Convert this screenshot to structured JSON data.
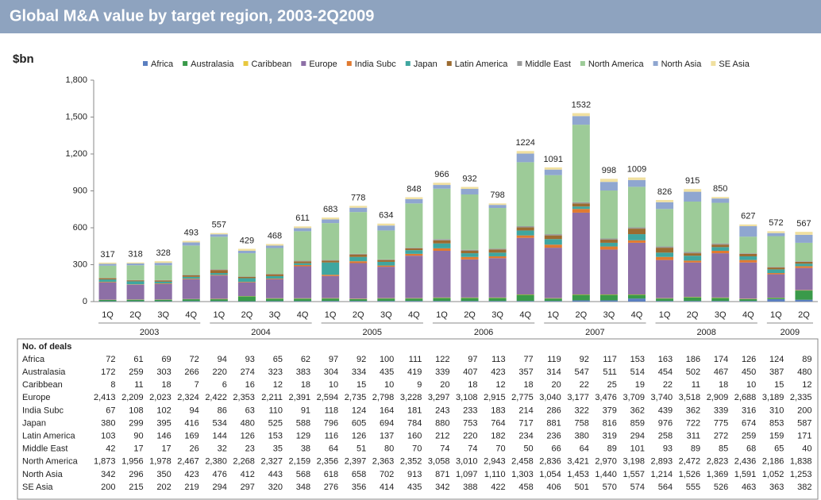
{
  "chart_data": {
    "type": "stacked_bar",
    "title": "Global M&A value by target region, 2003-2Q2009",
    "y_label": "$bn",
    "groups": [
      {
        "label": "2003",
        "categories": [
          "1Q",
          "2Q",
          "3Q",
          "4Q"
        ]
      },
      {
        "label": "2004",
        "categories": [
          "1Q",
          "2Q",
          "3Q",
          "4Q"
        ]
      },
      {
        "label": "2005",
        "categories": [
          "1Q",
          "2Q",
          "3Q",
          "4Q"
        ]
      },
      {
        "label": "2006",
        "categories": [
          "1Q",
          "2Q",
          "3Q",
          "4Q"
        ]
      },
      {
        "label": "2007",
        "categories": [
          "1Q",
          "2Q",
          "3Q",
          "4Q"
        ]
      },
      {
        "label": "2008",
        "categories": [
          "1Q",
          "2Q",
          "3Q",
          "4Q"
        ]
      },
      {
        "label": "2009",
        "categories": [
          "1Q",
          "2Q"
        ]
      }
    ],
    "totals": [
      317,
      318,
      328,
      493,
      557,
      429,
      468,
      611,
      683,
      778,
      634,
      848,
      966,
      932,
      798,
      1224,
      1091,
      1532,
      998,
      1009,
      826,
      915,
      850,
      627,
      572,
      567
    ],
    "ylim": [
      0,
      1800
    ],
    "yticks": [
      0,
      300,
      600,
      900,
      {
        "value": 1200,
        "label": "1,200"
      },
      {
        "value": 1500,
        "label": "1,500"
      },
      {
        "value": 1800,
        "label": "1,800"
      }
    ],
    "series": [
      {
        "name": "Africa",
        "color": "#5b7fc0",
        "values": [
          3,
          3,
          3,
          4,
          4,
          3,
          4,
          4,
          5,
          5,
          5,
          5,
          5,
          5,
          5,
          5,
          5,
          10,
          10,
          25,
          5,
          5,
          5,
          5,
          20,
          15
        ]
      },
      {
        "name": "Australasia",
        "color": "#3a9a4a",
        "values": [
          10,
          12,
          12,
          15,
          15,
          40,
          20,
          20,
          20,
          15,
          20,
          20,
          25,
          25,
          25,
          50,
          20,
          45,
          45,
          30,
          20,
          30,
          25,
          15,
          10,
          75
        ]
      },
      {
        "name": "Caribbean",
        "color": "#e8c840",
        "values": [
          2,
          2,
          2,
          2,
          3,
          2,
          3,
          3,
          3,
          3,
          3,
          3,
          3,
          3,
          3,
          3,
          3,
          3,
          3,
          3,
          3,
          3,
          3,
          3,
          2,
          3
        ]
      },
      {
        "name": "Europe",
        "color": "#8d6fa6",
        "values": [
          140,
          120,
          125,
          160,
          190,
          110,
          155,
          260,
          180,
          290,
          255,
          345,
          380,
          310,
          320,
          460,
          410,
          665,
          365,
          420,
          310,
          280,
          360,
          295,
          190,
          180
        ]
      },
      {
        "name": "India Subc",
        "color": "#e07a30",
        "values": [
          5,
          3,
          5,
          5,
          5,
          5,
          5,
          10,
          10,
          15,
          10,
          15,
          20,
          20,
          15,
          20,
          25,
          30,
          25,
          20,
          25,
          15,
          20,
          20,
          10,
          15
        ]
      },
      {
        "name": "Japan",
        "color": "#3fa6a0",
        "values": [
          20,
          25,
          15,
          15,
          15,
          30,
          20,
          15,
          100,
          35,
          30,
          30,
          40,
          30,
          30,
          40,
          45,
          20,
          30,
          50,
          35,
          40,
          30,
          30,
          30,
          20
        ]
      },
      {
        "name": "Latin America",
        "color": "#9b6b30",
        "values": [
          10,
          8,
          10,
          12,
          25,
          10,
          15,
          15,
          15,
          20,
          15,
          15,
          25,
          20,
          25,
          25,
          30,
          25,
          25,
          45,
          40,
          20,
          20,
          20,
          15,
          15
        ]
      },
      {
        "name": "Middle East",
        "color": "#9a9a9a",
        "values": [
          2,
          2,
          3,
          3,
          5,
          3,
          3,
          5,
          5,
          5,
          5,
          5,
          10,
          8,
          8,
          10,
          10,
          10,
          10,
          10,
          10,
          10,
          10,
          5,
          5,
          5
        ]
      },
      {
        "name": "North America",
        "color": "#9dcb98",
        "values": [
          100,
          120,
          120,
          240,
          265,
          190,
          210,
          240,
          300,
          340,
          235,
          360,
          410,
          450,
          330,
          520,
          480,
          630,
          390,
          330,
          305,
          410,
          330,
          135,
          250,
          150
        ]
      },
      {
        "name": "North Asia",
        "color": "#8fa6d0",
        "values": [
          15,
          15,
          20,
          25,
          20,
          20,
          20,
          25,
          30,
          35,
          40,
          35,
          30,
          45,
          25,
          70,
          45,
          70,
          70,
          55,
          55,
          80,
          35,
          85,
          25,
          65
        ]
      },
      {
        "name": "SE Asia",
        "color": "#f0e0a0",
        "values": [
          10,
          8,
          13,
          12,
          10,
          16,
          13,
          14,
          15,
          15,
          16,
          15,
          18,
          16,
          12,
          21,
          18,
          24,
          25,
          21,
          18,
          22,
          12,
          14,
          15,
          24
        ]
      }
    ]
  },
  "table": {
    "header": "No. of deals",
    "rows": [
      {
        "label": "Africa",
        "values": [
          "72",
          "61",
          "69",
          "72",
          "94",
          "93",
          "65",
          "62",
          "97",
          "92",
          "100",
          "111",
          "122",
          "97",
          "113",
          "77",
          "119",
          "92",
          "117",
          "153",
          "163",
          "186",
          "174",
          "126",
          "124",
          "89"
        ]
      },
      {
        "label": "Australasia",
        "values": [
          "172",
          "259",
          "303",
          "266",
          "220",
          "274",
          "323",
          "383",
          "304",
          "334",
          "435",
          "419",
          "339",
          "407",
          "423",
          "357",
          "314",
          "547",
          "511",
          "514",
          "454",
          "502",
          "467",
          "450",
          "387",
          "480"
        ]
      },
      {
        "label": "Caribbean",
        "values": [
          "8",
          "11",
          "18",
          "7",
          "6",
          "16",
          "12",
          "18",
          "10",
          "15",
          "10",
          "9",
          "20",
          "18",
          "12",
          "18",
          "20",
          "22",
          "25",
          "19",
          "22",
          "11",
          "18",
          "10",
          "15",
          "12"
        ]
      },
      {
        "label": "Europe",
        "values": [
          "2,413",
          "2,209",
          "2,023",
          "2,324",
          "2,422",
          "2,353",
          "2,211",
          "2,391",
          "2,594",
          "2,735",
          "2,798",
          "3,228",
          "3,297",
          "3,108",
          "2,915",
          "2,775",
          "3,040",
          "3,177",
          "3,476",
          "3,709",
          "3,740",
          "3,518",
          "2,909",
          "2,688",
          "3,189",
          "2,335"
        ]
      },
      {
        "label": "India Subc",
        "values": [
          "67",
          "108",
          "102",
          "94",
          "86",
          "63",
          "110",
          "91",
          "118",
          "124",
          "164",
          "181",
          "243",
          "233",
          "183",
          "214",
          "286",
          "322",
          "379",
          "362",
          "439",
          "362",
          "339",
          "316",
          "310",
          "200"
        ]
      },
      {
        "label": "Japan",
        "values": [
          "380",
          "299",
          "395",
          "416",
          "534",
          "480",
          "525",
          "588",
          "796",
          "605",
          "694",
          "784",
          "880",
          "753",
          "764",
          "717",
          "881",
          "758",
          "816",
          "859",
          "976",
          "722",
          "775",
          "674",
          "853",
          "587"
        ]
      },
      {
        "label": "Latin America",
        "values": [
          "103",
          "90",
          "146",
          "169",
          "144",
          "126",
          "153",
          "129",
          "116",
          "126",
          "137",
          "160",
          "212",
          "220",
          "182",
          "234",
          "236",
          "380",
          "319",
          "294",
          "258",
          "311",
          "272",
          "259",
          "159",
          "171"
        ]
      },
      {
        "label": "Middle East",
        "values": [
          "42",
          "17",
          "17",
          "26",
          "32",
          "23",
          "35",
          "38",
          "64",
          "51",
          "80",
          "70",
          "74",
          "74",
          "70",
          "50",
          "66",
          "64",
          "89",
          "101",
          "93",
          "89",
          "85",
          "68",
          "65",
          "40"
        ]
      },
      {
        "label": "North America",
        "values": [
          "1,873",
          "1,956",
          "1,978",
          "2,467",
          "2,380",
          "2,268",
          "2,327",
          "2,159",
          "2,356",
          "2,397",
          "2,363",
          "2,352",
          "3,058",
          "3,010",
          "2,943",
          "2,458",
          "2,836",
          "3,421",
          "2,970",
          "3,198",
          "2,893",
          "2,472",
          "2,823",
          "2,436",
          "2,186",
          "1,838"
        ]
      },
      {
        "label": "North Asia",
        "values": [
          "342",
          "296",
          "350",
          "423",
          "476",
          "412",
          "443",
          "568",
          "618",
          "658",
          "702",
          "913",
          "871",
          "1,097",
          "1,110",
          "1,303",
          "1,054",
          "1,453",
          "1,440",
          "1,557",
          "1,214",
          "1,526",
          "1,369",
          "1,591",
          "1,052",
          "1,253"
        ]
      },
      {
        "label": "SE Asia",
        "values": [
          "200",
          "215",
          "202",
          "219",
          "294",
          "297",
          "320",
          "348",
          "276",
          "356",
          "414",
          "435",
          "342",
          "388",
          "422",
          "458",
          "406",
          "501",
          "570",
          "574",
          "564",
          "555",
          "526",
          "463",
          "363",
          "382"
        ]
      }
    ]
  }
}
